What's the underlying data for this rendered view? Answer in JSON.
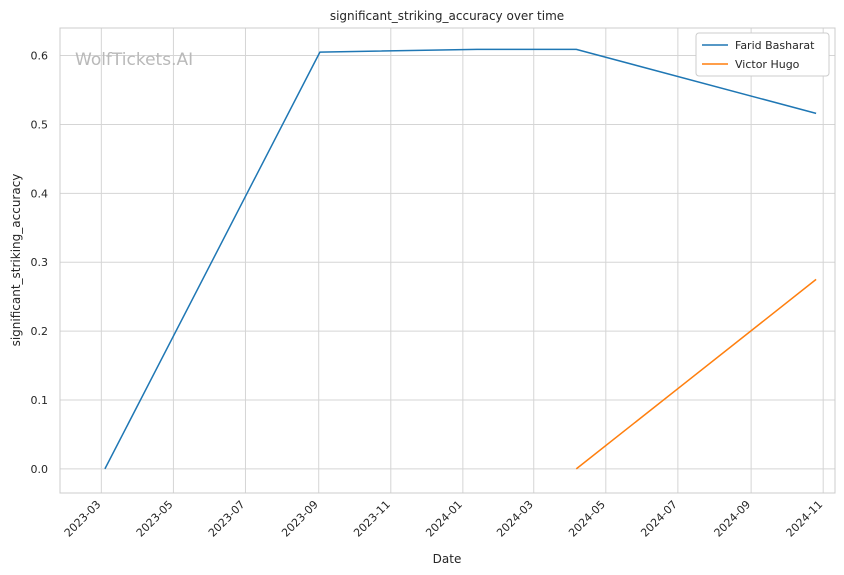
{
  "chart_data": {
    "type": "line",
    "title": "significant_striking_accuracy over time",
    "xlabel": "Date",
    "ylabel": "significant_striking_accuracy",
    "watermark": "WolfTickets.AI",
    "x_ticks": [
      "2023-03",
      "2023-05",
      "2023-07",
      "2023-09",
      "2023-11",
      "2024-01",
      "2024-03",
      "2024-05",
      "2024-07",
      "2024-09",
      "2024-11"
    ],
    "y_ticks": [
      "0.0",
      "0.1",
      "0.2",
      "0.3",
      "0.4",
      "0.5",
      "0.6"
    ],
    "xlim": [
      "2023-01-25",
      "2024-11-11"
    ],
    "ylim": [
      -0.035,
      0.64
    ],
    "grid": true,
    "legend_position": "top-right",
    "series": [
      {
        "name": "Farid Basharat",
        "color": "#1f77b4",
        "points": [
          {
            "x": "2023-03-04",
            "y": 0.0
          },
          {
            "x": "2023-09-02",
            "y": 0.605
          },
          {
            "x": "2024-01-13",
            "y": 0.609
          },
          {
            "x": "2024-04-06",
            "y": 0.609
          },
          {
            "x": "2024-10-26",
            "y": 0.516
          }
        ]
      },
      {
        "name": "Victor Hugo",
        "color": "#ff7f0e",
        "points": [
          {
            "x": "2024-04-06",
            "y": 0.0
          },
          {
            "x": "2024-10-26",
            "y": 0.275
          }
        ]
      }
    ]
  }
}
